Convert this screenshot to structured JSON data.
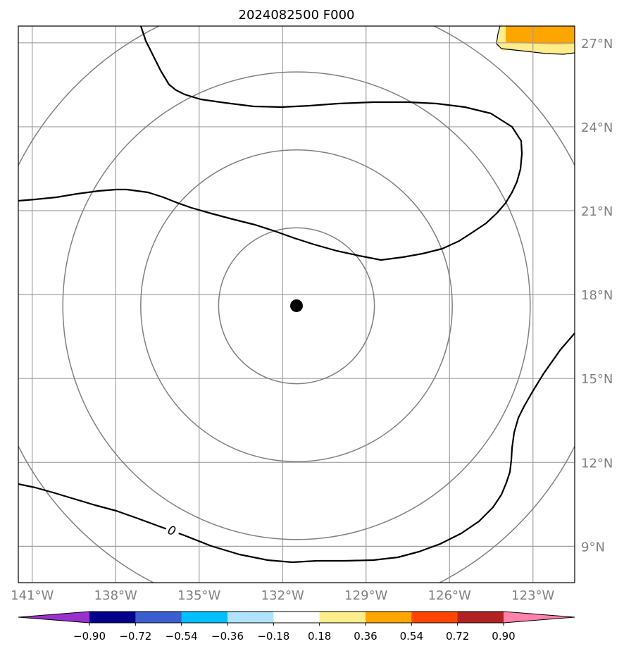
{
  "title": "2024082500 F000",
  "lon_labels": [
    {
      "text": "141°W",
      "lon": -141
    },
    {
      "text": "138°W",
      "lon": -138
    },
    {
      "text": "135°W",
      "lon": -135
    },
    {
      "text": "132°W",
      "lon": -132
    },
    {
      "text": "129°W",
      "lon": -129
    },
    {
      "text": "126°W",
      "lon": -126
    },
    {
      "text": "123°W",
      "lon": -123
    }
  ],
  "lat_labels": [
    {
      "text": "27°N",
      "lat": 27
    },
    {
      "text": "24°N",
      "lat": 24
    },
    {
      "text": "21°N",
      "lat": 21
    },
    {
      "text": "18°N",
      "lat": 18
    },
    {
      "text": "15°N",
      "lat": 15
    },
    {
      "text": "12°N",
      "lat": 12
    },
    {
      "text": "9°N",
      "lat": 9
    }
  ],
  "map_extent": {
    "lon_min": -141.5,
    "lon_max": -121.5,
    "lat_min": 7.7,
    "lat_max": 27.6
  },
  "storm_center": {
    "lon": -131.5,
    "lat": 17.6
  },
  "range_ring_radii_deg": [
    2.8,
    5.6,
    8.4,
    11.2
  ],
  "zero_contour_label": "0",
  "colorbar": {
    "ticks": [
      "−0.90",
      "−0.72",
      "−0.54",
      "−0.36",
      "−0.18",
      "0.18",
      "0.36",
      "0.54",
      "0.72",
      "0.90"
    ],
    "colors": [
      "#9932CC",
      "#00008B",
      "#3A5FCD",
      "#00BFFF",
      "#B0E2FF",
      "#FFFFFF",
      "#FFEC8B",
      "#FFA500",
      "#FF4500",
      "#B22222",
      "#FF82AB"
    ]
  },
  "colors": {
    "grid": "#a0a0a0",
    "range_ring": "#808080",
    "contour": "#000000",
    "axis_label": "#808080"
  }
}
